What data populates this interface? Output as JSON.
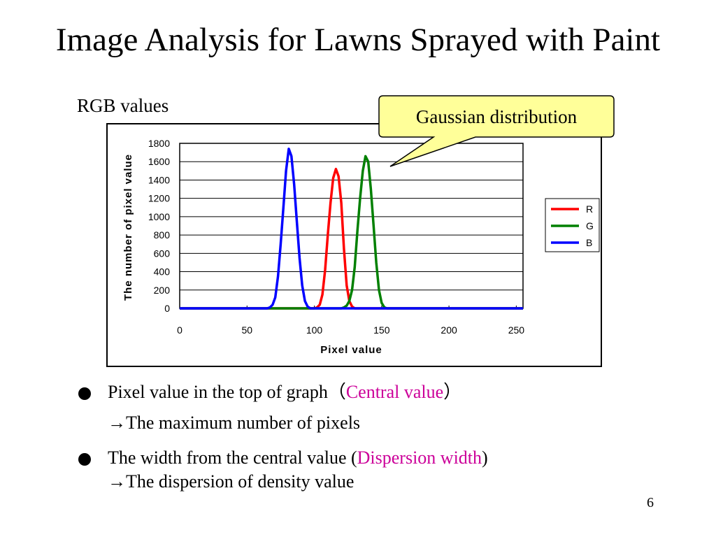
{
  "slide": {
    "title": "Image Analysis for Lawns Sprayed with Paint",
    "section_label": "RGB values",
    "callout": "Gaussian distribution",
    "page_number": "6"
  },
  "bullets": [
    {
      "text_before": "Pixel value in the top of graph（",
      "highlight": "Central value",
      "text_after": "）",
      "sub": "→The maximum number of pixels"
    },
    {
      "text_before": "The width from the central value (",
      "highlight": "Dispersion width",
      "text_after": ")",
      "sub": "→The dispersion of density value"
    }
  ],
  "colors": {
    "highlight": "#cc0099",
    "callout_fill": "#ffff99",
    "R": "#ff0000",
    "G": "#008000",
    "B": "#0000ff"
  },
  "chart_data": {
    "type": "line",
    "xlabel": "Pixel value",
    "ylabel": "The number of pixel value",
    "xlim": [
      0,
      255
    ],
    "ylim": [
      0,
      1800
    ],
    "xticks": [
      0,
      50,
      100,
      150,
      200,
      250
    ],
    "yticks": [
      0,
      200,
      400,
      600,
      800,
      1000,
      1200,
      1400,
      1600,
      1800
    ],
    "grid": "horizontal",
    "legend_position": "right",
    "series": [
      {
        "name": "R",
        "color": "#ff0000",
        "x": [
          0,
          100,
          102,
          104,
          106,
          108,
          110,
          112,
          114,
          116,
          118,
          120,
          122,
          124,
          126,
          128,
          130,
          255
        ],
        "y": [
          0,
          0,
          10,
          40,
          150,
          420,
          800,
          1150,
          1420,
          1520,
          1440,
          1150,
          650,
          250,
          80,
          20,
          0,
          0
        ]
      },
      {
        "name": "G",
        "color": "#008000",
        "x": [
          0,
          120,
          122,
          124,
          126,
          128,
          130,
          132,
          134,
          136,
          138,
          140,
          142,
          144,
          146,
          148,
          150,
          152,
          154,
          255
        ],
        "y": [
          0,
          0,
          10,
          30,
          80,
          200,
          450,
          850,
          1200,
          1500,
          1660,
          1600,
          1300,
          900,
          500,
          200,
          60,
          10,
          0,
          0
        ]
      },
      {
        "name": "B",
        "color": "#0000ff",
        "x": [
          0,
          65,
          67,
          69,
          71,
          73,
          75,
          77,
          79,
          81,
          83,
          85,
          87,
          89,
          91,
          93,
          95,
          97,
          255
        ],
        "y": [
          0,
          0,
          10,
          40,
          120,
          350,
          700,
          1100,
          1500,
          1740,
          1660,
          1350,
          950,
          550,
          250,
          80,
          20,
          0,
          0
        ]
      }
    ]
  }
}
